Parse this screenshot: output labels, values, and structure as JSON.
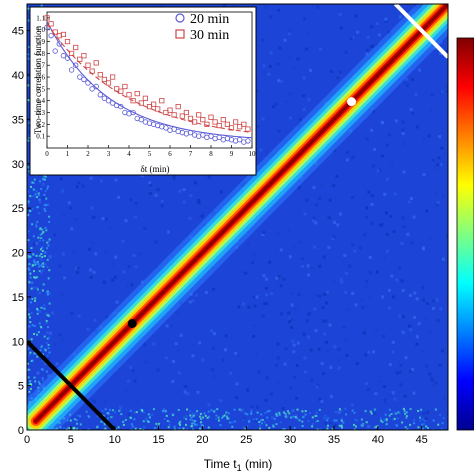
{
  "chart_data": [
    {
      "type": "heatmap",
      "title": "",
      "xlabel": "Time t",
      "xlabel_sub": "1",
      "xlabel_unit": " (min)",
      "ylabel": "",
      "xlim": [
        0,
        48
      ],
      "ylim": [
        0,
        48
      ],
      "x_ticks": [
        0,
        5,
        10,
        15,
        20,
        25,
        30,
        35,
        40,
        45
      ],
      "y_ticks": [
        0,
        5,
        10,
        15,
        20,
        25,
        30,
        35,
        40,
        45
      ],
      "colormap": "jet",
      "colorbar": true,
      "description_values": {
        "diagonal_band": "high correlation along t1 = t2",
        "background": "low correlation"
      },
      "markers": [
        {
          "x": 12,
          "y": 12,
          "color": "#000000"
        },
        {
          "x": 37,
          "y": 37,
          "color": "#ffffff"
        }
      ],
      "cut_lines": [
        {
          "from": [
            0,
            10
          ],
          "to": [
            10,
            0
          ],
          "color": "#000000"
        },
        {
          "from": [
            42,
            48
          ],
          "to": [
            48,
            42
          ],
          "color": "#ffffff"
        }
      ],
      "grid": false
    },
    {
      "type": "scatter",
      "xlabel": "δt (min)",
      "ylabel": "Two-time correlation function",
      "xlim": [
        0,
        10
      ],
      "ylim": [
        0.0,
        1.15
      ],
      "x_ticks": [
        0,
        1,
        2,
        3,
        4,
        5,
        6,
        7,
        8,
        9,
        10
      ],
      "y_ticks": [
        "0.1",
        "0.2",
        "0.3",
        "0.4",
        "0.5",
        "0.6",
        "0.7",
        "0.8",
        "0.9",
        "1.0",
        "1.1"
      ],
      "legend_position": "top-right",
      "series": [
        {
          "name": "20 min",
          "marker": "circle",
          "color": "#5b5bd6",
          "fit": {
            "a": 1.02,
            "tau": 3.0
          },
          "x": [
            0.0,
            0.2,
            0.4,
            0.6,
            0.8,
            1.0,
            1.2,
            1.4,
            1.6,
            1.8,
            2.0,
            2.2,
            2.4,
            2.6,
            2.8,
            3.0,
            3.2,
            3.4,
            3.6,
            3.8,
            4.0,
            4.2,
            4.4,
            4.6,
            4.8,
            5.0,
            5.2,
            5.4,
            5.6,
            5.8,
            6.0,
            6.2,
            6.4,
            6.6,
            6.8,
            7.0,
            7.2,
            7.4,
            7.6,
            7.8,
            8.0,
            8.2,
            8.4,
            8.6,
            8.8,
            9.0,
            9.2,
            9.4,
            9.6,
            9.8
          ],
          "values": [
            1.02,
            0.95,
            0.82,
            0.88,
            0.78,
            0.76,
            0.66,
            0.7,
            0.6,
            0.58,
            0.55,
            0.5,
            0.52,
            0.45,
            0.42,
            0.4,
            0.38,
            0.36,
            0.35,
            0.3,
            0.29,
            0.3,
            0.25,
            0.24,
            0.22,
            0.21,
            0.2,
            0.19,
            0.18,
            0.17,
            0.15,
            0.16,
            0.14,
            0.13,
            0.12,
            0.13,
            0.11,
            0.1,
            0.11,
            0.09,
            0.1,
            0.08,
            0.09,
            0.07,
            0.08,
            0.07,
            0.06,
            0.07,
            0.05,
            0.06
          ]
        },
        {
          "name": "30 min",
          "marker": "square",
          "color": "#d04545",
          "fit": {
            "a": 1.0,
            "tau": 4.0
          },
          "x": [
            0.0,
            0.2,
            0.4,
            0.6,
            0.8,
            1.0,
            1.2,
            1.4,
            1.6,
            1.8,
            2.0,
            2.2,
            2.4,
            2.6,
            2.8,
            3.0,
            3.2,
            3.4,
            3.6,
            3.8,
            4.0,
            4.2,
            4.4,
            4.6,
            4.8,
            5.0,
            5.2,
            5.4,
            5.6,
            5.8,
            6.0,
            6.2,
            6.4,
            6.6,
            6.8,
            7.0,
            7.2,
            7.4,
            7.6,
            7.8,
            8.0,
            8.2,
            8.4,
            8.6,
            8.8,
            9.0,
            9.2,
            9.4,
            9.6,
            9.8
          ],
          "values": [
            1.1,
            1.05,
            0.98,
            0.95,
            0.96,
            0.9,
            0.8,
            0.85,
            0.75,
            0.78,
            0.7,
            0.65,
            0.72,
            0.62,
            0.58,
            0.55,
            0.6,
            0.5,
            0.48,
            0.52,
            0.45,
            0.4,
            0.46,
            0.38,
            0.42,
            0.35,
            0.37,
            0.33,
            0.4,
            0.3,
            0.32,
            0.28,
            0.35,
            0.27,
            0.3,
            0.25,
            0.22,
            0.28,
            0.24,
            0.2,
            0.26,
            0.22,
            0.19,
            0.24,
            0.2,
            0.17,
            0.22,
            0.18,
            0.2,
            0.16
          ]
        }
      ]
    }
  ],
  "colorbar_colors": [
    "#00008f",
    "#0000ff",
    "#0080ff",
    "#00ffff",
    "#80ff80",
    "#ffff00",
    "#ff8000",
    "#ff0000",
    "#800000"
  ]
}
